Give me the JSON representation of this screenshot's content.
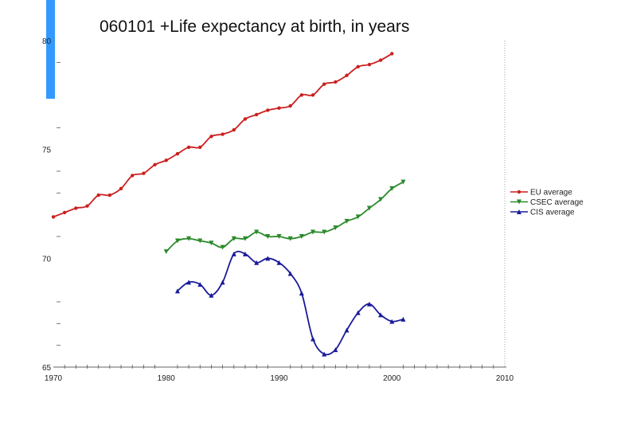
{
  "chart_data": {
    "type": "line",
    "title": "060101 +Life expectancy at birth, in years",
    "xlabel": "",
    "ylabel": "",
    "xlim": [
      1970,
      2010
    ],
    "ylim": [
      65,
      80
    ],
    "x_ticks": [
      1970,
      1980,
      1990,
      2000,
      2010
    ],
    "y_ticks": [
      65,
      70,
      75,
      80
    ],
    "legend_position": "right",
    "series": [
      {
        "name": "EU average",
        "color": "#cc1f1f",
        "marker": "circle",
        "x": [
          1970,
          1971,
          1972,
          1973,
          1974,
          1975,
          1976,
          1977,
          1978,
          1979,
          1980,
          1981,
          1982,
          1983,
          1984,
          1985,
          1986,
          1987,
          1988,
          1989,
          1990,
          1991,
          1992,
          1993,
          1994,
          1995,
          1996,
          1997,
          1998,
          1999,
          2000
        ],
        "y": [
          71.9,
          72.1,
          72.3,
          72.4,
          72.9,
          72.9,
          73.2,
          73.8,
          73.9,
          74.3,
          74.5,
          74.8,
          75.1,
          75.1,
          75.6,
          75.7,
          75.9,
          76.4,
          76.6,
          76.8,
          76.9,
          77.0,
          77.5,
          77.5,
          78.0,
          78.1,
          78.4,
          78.8,
          78.9,
          79.1,
          79.4
        ]
      },
      {
        "name": "CSEC average",
        "color": "#2a8a2a",
        "marker": "triangle-down",
        "x": [
          1980,
          1981,
          1982,
          1983,
          1984,
          1985,
          1986,
          1987,
          1988,
          1989,
          1990,
          1991,
          1992,
          1993,
          1994,
          1995,
          1996,
          1997,
          1998,
          1999,
          2000,
          2001
        ],
        "y": [
          70.3,
          70.8,
          70.9,
          70.8,
          70.7,
          70.5,
          70.9,
          70.9,
          71.2,
          71.0,
          71.0,
          70.9,
          71.0,
          71.2,
          71.2,
          71.4,
          71.7,
          71.9,
          72.3,
          72.7,
          73.2,
          73.5
        ]
      },
      {
        "name": "CIS average",
        "color": "#1a1a9a",
        "marker": "triangle-up",
        "x": [
          1981,
          1982,
          1983,
          1984,
          1985,
          1986,
          1987,
          1988,
          1989,
          1990,
          1991,
          1992,
          1993,
          1994,
          1995,
          1996,
          1997,
          1998,
          1999,
          2000,
          2001
        ],
        "y": [
          68.5,
          68.9,
          68.8,
          68.3,
          68.9,
          70.2,
          70.2,
          69.8,
          70.0,
          69.8,
          69.3,
          68.4,
          66.3,
          65.6,
          65.8,
          66.7,
          67.5,
          67.9,
          67.4,
          67.1,
          67.2
        ]
      }
    ]
  }
}
